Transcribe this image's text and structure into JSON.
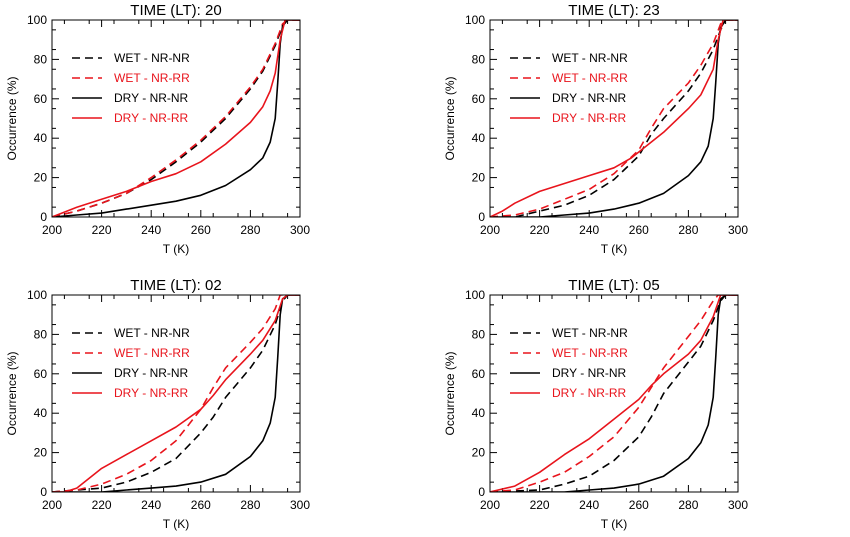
{
  "chart_data": [
    {
      "type": "line",
      "title": "TIME (LT): 20",
      "xlabel": "T (K)",
      "ylabel": "Occurrence (%)",
      "xlim": [
        200,
        300
      ],
      "ylim": [
        0,
        100
      ],
      "xticks": [
        "200",
        "220",
        "240",
        "260",
        "280",
        "300"
      ],
      "yticks": [
        "0",
        "20",
        "40",
        "60",
        "80",
        "100"
      ],
      "legend_position": "top-left",
      "series": [
        {
          "name": "WET - NR-NR",
          "color": "#000000",
          "dash": true,
          "points": [
            [
              200,
              0
            ],
            [
              210,
              3
            ],
            [
              220,
              7
            ],
            [
              230,
              12
            ],
            [
              240,
              19
            ],
            [
              250,
              28
            ],
            [
              260,
              38
            ],
            [
              270,
              50
            ],
            [
              280,
              65
            ],
            [
              285,
              74
            ],
            [
              290,
              87
            ],
            [
              293,
              97
            ],
            [
              295,
              100
            ],
            [
              300,
              100
            ]
          ]
        },
        {
          "name": "WET - NR-RR",
          "color": "#e8141c",
          "dash": true,
          "points": [
            [
              200,
              0
            ],
            [
              210,
              3
            ],
            [
              220,
              7
            ],
            [
              230,
              12
            ],
            [
              240,
              20
            ],
            [
              250,
              29
            ],
            [
              260,
              39
            ],
            [
              270,
              51
            ],
            [
              280,
              66
            ],
            [
              285,
              75
            ],
            [
              290,
              88
            ],
            [
              293,
              98
            ],
            [
              295,
              100
            ],
            [
              300,
              100
            ]
          ]
        },
        {
          "name": "DRY - NR-NR",
          "color": "#000000",
          "dash": false,
          "points": [
            [
              200,
              0
            ],
            [
              210,
              1
            ],
            [
              220,
              2
            ],
            [
              230,
              4
            ],
            [
              240,
              6
            ],
            [
              250,
              8
            ],
            [
              260,
              11
            ],
            [
              270,
              16
            ],
            [
              280,
              24
            ],
            [
              285,
              30
            ],
            [
              288,
              38
            ],
            [
              290,
              50
            ],
            [
              291,
              68
            ],
            [
              292,
              88
            ],
            [
              293,
              97
            ],
            [
              295,
              100
            ],
            [
              300,
              100
            ]
          ]
        },
        {
          "name": "DRY - NR-RR",
          "color": "#e8141c",
          "dash": false,
          "points": [
            [
              200,
              0
            ],
            [
              210,
              5
            ],
            [
              220,
              9
            ],
            [
              230,
              13
            ],
            [
              240,
              18
            ],
            [
              250,
              22
            ],
            [
              260,
              28
            ],
            [
              270,
              37
            ],
            [
              280,
              48
            ],
            [
              285,
              56
            ],
            [
              288,
              64
            ],
            [
              290,
              73
            ],
            [
              292,
              90
            ],
            [
              294,
              100
            ],
            [
              300,
              100
            ]
          ]
        }
      ]
    },
    {
      "type": "line",
      "title": "TIME (LT): 23",
      "xlabel": "T (K)",
      "ylabel": "Occurrence (%)",
      "xlim": [
        200,
        300
      ],
      "ylim": [
        0,
        100
      ],
      "xticks": [
        "200",
        "220",
        "240",
        "260",
        "280",
        "300"
      ],
      "yticks": [
        "0",
        "20",
        "40",
        "60",
        "80",
        "100"
      ],
      "legend_position": "top-left",
      "series": [
        {
          "name": "WET - NR-NR",
          "color": "#000000",
          "dash": true,
          "points": [
            [
              200,
              0
            ],
            [
              210,
              0
            ],
            [
              220,
              3
            ],
            [
              230,
              6
            ],
            [
              240,
              11
            ],
            [
              250,
              19
            ],
            [
              260,
              31
            ],
            [
              265,
              42
            ],
            [
              270,
              50
            ],
            [
              280,
              64
            ],
            [
              285,
              73
            ],
            [
              290,
              85
            ],
            [
              293,
              95
            ],
            [
              295,
              100
            ],
            [
              300,
              100
            ]
          ]
        },
        {
          "name": "WET - NR-RR",
          "color": "#e8141c",
          "dash": true,
          "points": [
            [
              200,
              0
            ],
            [
              210,
              1
            ],
            [
              220,
              4
            ],
            [
              230,
              9
            ],
            [
              240,
              14
            ],
            [
              250,
              22
            ],
            [
              260,
              34
            ],
            [
              265,
              45
            ],
            [
              270,
              55
            ],
            [
              280,
              68
            ],
            [
              285,
              77
            ],
            [
              290,
              88
            ],
            [
              293,
              98
            ],
            [
              295,
              100
            ],
            [
              300,
              100
            ]
          ]
        },
        {
          "name": "DRY - NR-NR",
          "color": "#000000",
          "dash": false,
          "points": [
            [
              200,
              0
            ],
            [
              220,
              0
            ],
            [
              230,
              1
            ],
            [
              240,
              2
            ],
            [
              250,
              4
            ],
            [
              260,
              7
            ],
            [
              270,
              12
            ],
            [
              280,
              21
            ],
            [
              285,
              28
            ],
            [
              288,
              36
            ],
            [
              290,
              50
            ],
            [
              291,
              68
            ],
            [
              292,
              88
            ],
            [
              293,
              96
            ],
            [
              295,
              100
            ],
            [
              300,
              100
            ]
          ]
        },
        {
          "name": "DRY - NR-RR",
          "color": "#e8141c",
          "dash": false,
          "points": [
            [
              200,
              0
            ],
            [
              205,
              3
            ],
            [
              210,
              7
            ],
            [
              220,
              13
            ],
            [
              230,
              17
            ],
            [
              240,
              21
            ],
            [
              250,
              25
            ],
            [
              257,
              30
            ],
            [
              260,
              33
            ],
            [
              270,
              43
            ],
            [
              280,
              55
            ],
            [
              285,
              62
            ],
            [
              290,
              75
            ],
            [
              292,
              90
            ],
            [
              294,
              100
            ],
            [
              300,
              100
            ]
          ]
        }
      ]
    },
    {
      "type": "line",
      "title": "TIME (LT): 02",
      "xlabel": "T (K)",
      "ylabel": "Occurrence (%)",
      "xlim": [
        200,
        300
      ],
      "ylim": [
        0,
        100
      ],
      "xticks": [
        "200",
        "220",
        "240",
        "260",
        "280",
        "300"
      ],
      "yticks": [
        "0",
        "20",
        "40",
        "60",
        "80",
        "100"
      ],
      "legend_position": "top-left",
      "series": [
        {
          "name": "WET - NR-NR",
          "color": "#000000",
          "dash": true,
          "points": [
            [
              200,
              0
            ],
            [
              210,
              1
            ],
            [
              220,
              2
            ],
            [
              230,
              5
            ],
            [
              240,
              10
            ],
            [
              250,
              17
            ],
            [
              260,
              30
            ],
            [
              265,
              38
            ],
            [
              270,
              48
            ],
            [
              280,
              63
            ],
            [
              285,
              72
            ],
            [
              290,
              85
            ],
            [
              293,
              97
            ],
            [
              295,
              100
            ],
            [
              300,
              100
            ]
          ]
        },
        {
          "name": "WET - NR-RR",
          "color": "#e8141c",
          "dash": true,
          "points": [
            [
              200,
              0
            ],
            [
              210,
              1
            ],
            [
              220,
              4
            ],
            [
              230,
              9
            ],
            [
              240,
              16
            ],
            [
              250,
              26
            ],
            [
              260,
              42
            ],
            [
              265,
              53
            ],
            [
              270,
              63
            ],
            [
              280,
              76
            ],
            [
              285,
              83
            ],
            [
              290,
              93
            ],
            [
              292,
              100
            ],
            [
              300,
              100
            ]
          ]
        },
        {
          "name": "DRY - NR-NR",
          "color": "#000000",
          "dash": false,
          "points": [
            [
              200,
              0
            ],
            [
              220,
              0
            ],
            [
              230,
              1
            ],
            [
              240,
              2
            ],
            [
              250,
              3
            ],
            [
              260,
              5
            ],
            [
              270,
              9
            ],
            [
              280,
              18
            ],
            [
              285,
              26
            ],
            [
              288,
              35
            ],
            [
              290,
              48
            ],
            [
              291,
              68
            ],
            [
              292,
              90
            ],
            [
              293,
              98
            ],
            [
              295,
              100
            ],
            [
              300,
              100
            ]
          ]
        },
        {
          "name": "DRY - NR-RR",
          "color": "#e8141c",
          "dash": false,
          "points": [
            [
              200,
              0
            ],
            [
              205,
              0
            ],
            [
              210,
              2
            ],
            [
              215,
              7
            ],
            [
              220,
              12
            ],
            [
              230,
              19
            ],
            [
              240,
              26
            ],
            [
              250,
              33
            ],
            [
              260,
              42
            ],
            [
              265,
              49
            ],
            [
              270,
              57
            ],
            [
              280,
              70
            ],
            [
              285,
              77
            ],
            [
              290,
              87
            ],
            [
              293,
              98
            ],
            [
              295,
              100
            ],
            [
              300,
              100
            ]
          ]
        }
      ]
    },
    {
      "type": "line",
      "title": "TIME (LT): 05",
      "xlabel": "T (K)",
      "ylabel": "Occurrence (%)",
      "xlim": [
        200,
        300
      ],
      "ylim": [
        0,
        100
      ],
      "xticks": [
        "200",
        "220",
        "240",
        "260",
        "280",
        "300"
      ],
      "yticks": [
        "0",
        "20",
        "40",
        "60",
        "80",
        "100"
      ],
      "legend_position": "top-left",
      "series": [
        {
          "name": "WET - NR-NR",
          "color": "#000000",
          "dash": true,
          "points": [
            [
              200,
              0
            ],
            [
              220,
              1
            ],
            [
              230,
              4
            ],
            [
              240,
              8
            ],
            [
              250,
              16
            ],
            [
              260,
              28
            ],
            [
              265,
              38
            ],
            [
              270,
              50
            ],
            [
              280,
              66
            ],
            [
              285,
              74
            ],
            [
              290,
              87
            ],
            [
              293,
              97
            ],
            [
              295,
              100
            ],
            [
              300,
              100
            ]
          ]
        },
        {
          "name": "WET - NR-RR",
          "color": "#e8141c",
          "dash": true,
          "points": [
            [
              200,
              0
            ],
            [
              210,
              1
            ],
            [
              220,
              5
            ],
            [
              230,
              10
            ],
            [
              240,
              18
            ],
            [
              250,
              28
            ],
            [
              260,
              43
            ],
            [
              265,
              53
            ],
            [
              270,
              63
            ],
            [
              280,
              79
            ],
            [
              285,
              87
            ],
            [
              290,
              97
            ],
            [
              292,
              100
            ],
            [
              300,
              100
            ]
          ]
        },
        {
          "name": "DRY - NR-NR",
          "color": "#000000",
          "dash": false,
          "points": [
            [
              200,
              0
            ],
            [
              230,
              0
            ],
            [
              240,
              1
            ],
            [
              250,
              2
            ],
            [
              260,
              4
            ],
            [
              270,
              8
            ],
            [
              280,
              17
            ],
            [
              285,
              25
            ],
            [
              288,
              34
            ],
            [
              290,
              48
            ],
            [
              291,
              68
            ],
            [
              292,
              90
            ],
            [
              293,
              98
            ],
            [
              295,
              100
            ],
            [
              300,
              100
            ]
          ]
        },
        {
          "name": "DRY - NR-RR",
          "color": "#e8141c",
          "dash": false,
          "points": [
            [
              200,
              0
            ],
            [
              210,
              3
            ],
            [
              220,
              10
            ],
            [
              230,
              19
            ],
            [
              240,
              27
            ],
            [
              250,
              37
            ],
            [
              260,
              47
            ],
            [
              265,
              54
            ],
            [
              270,
              60
            ],
            [
              280,
              70
            ],
            [
              285,
              77
            ],
            [
              290,
              89
            ],
            [
              293,
              100
            ],
            [
              300,
              100
            ]
          ]
        }
      ]
    }
  ]
}
